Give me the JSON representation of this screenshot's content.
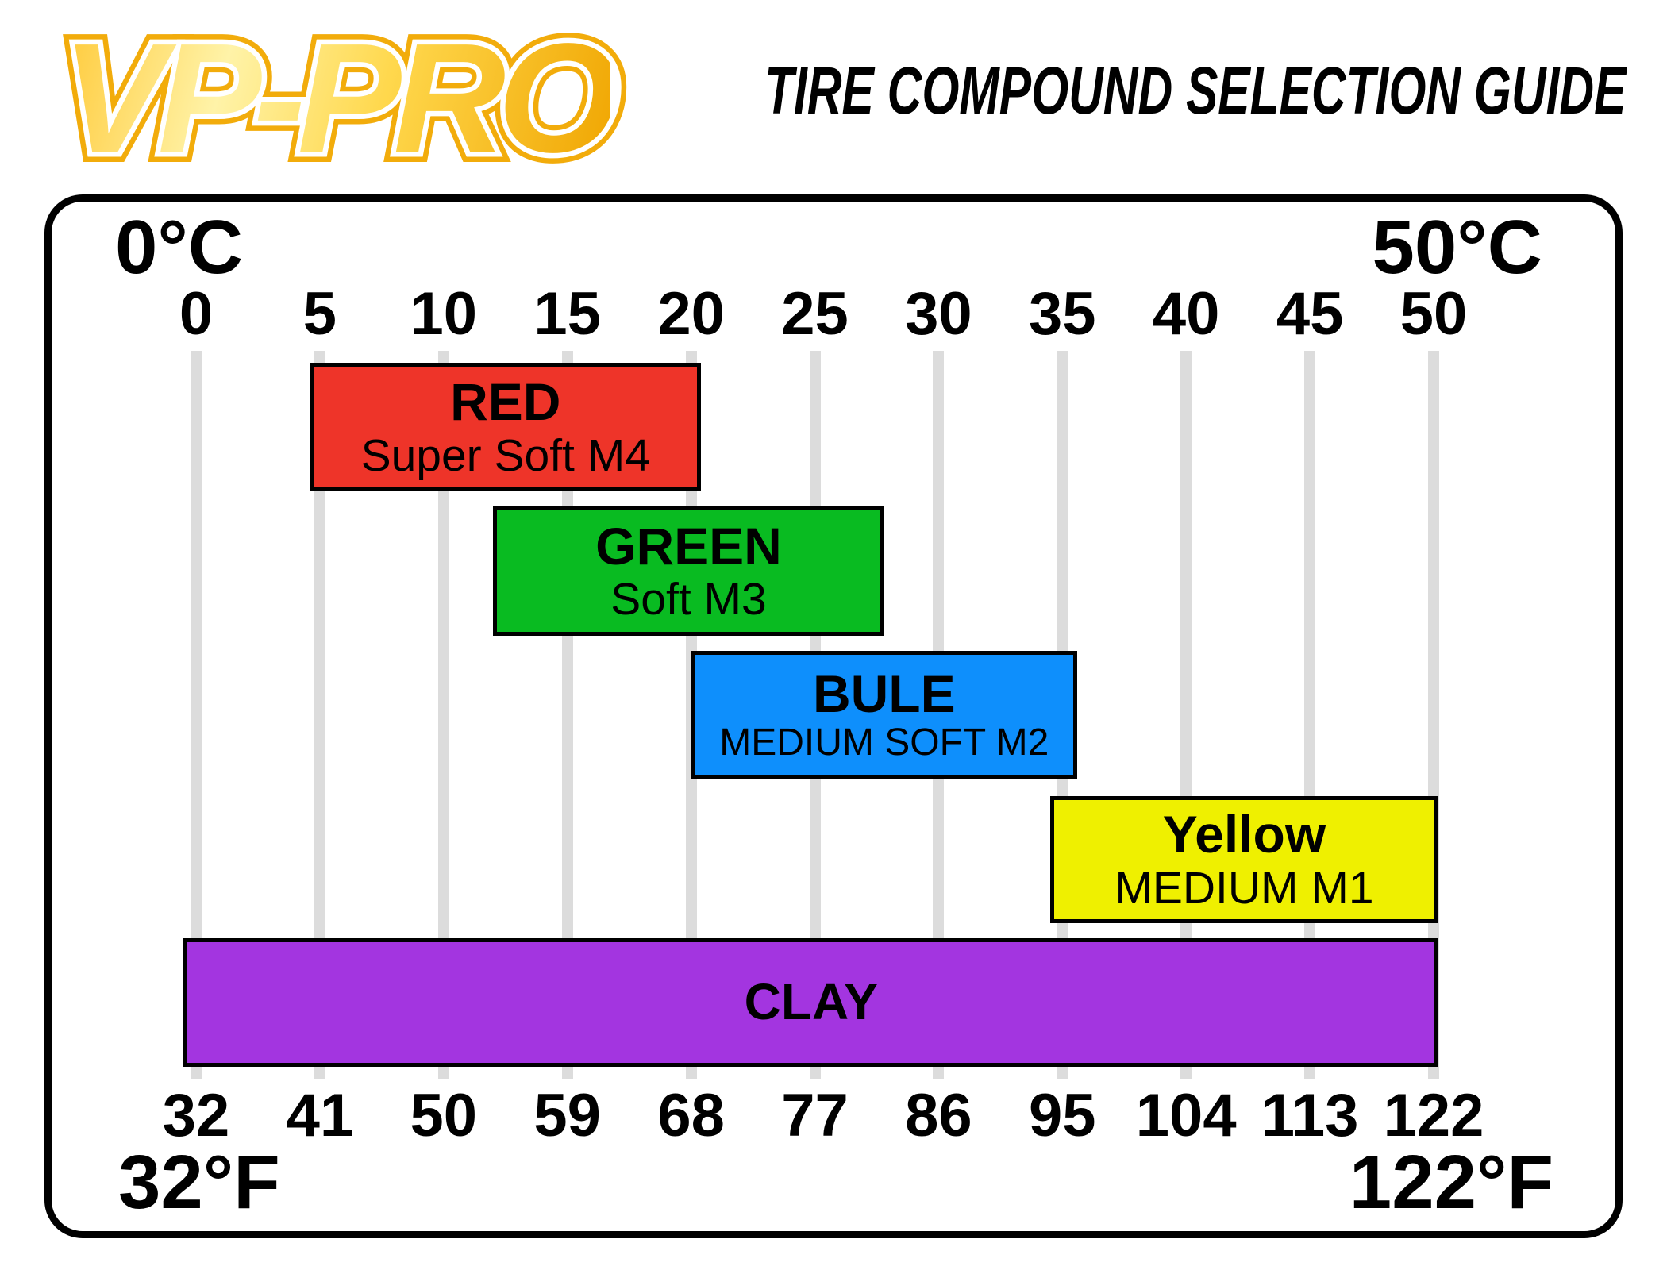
{
  "header": {
    "logo_text": "VP-PRO",
    "title": "TIRE COMPOUND SELECTION GUIDE"
  },
  "chart_data": {
    "type": "bar",
    "orientation": "horizontal-range",
    "title": "TIRE COMPOUND SELECTION GUIDE",
    "grid": true,
    "grid_color": "#DCDCDC",
    "celsius_axis": {
      "corner_left": "0°C",
      "corner_right": "50°C",
      "min": 0,
      "max": 50,
      "ticks": [
        0,
        5,
        10,
        15,
        20,
        25,
        30,
        35,
        40,
        45,
        50
      ]
    },
    "fahrenheit_axis": {
      "corner_left": "32°F",
      "corner_right": "122°F",
      "ticks": [
        32,
        41,
        50,
        59,
        68,
        77,
        86,
        95,
        104,
        113,
        122
      ]
    },
    "bars": [
      {
        "label": "RED",
        "compound": "Super Soft M4",
        "color": "#EE3429",
        "range_c": [
          4.6,
          20.4
        ]
      },
      {
        "label": "GREEN",
        "compound": "Soft M3",
        "color": "#09BB21",
        "range_c": [
          12.0,
          27.8
        ]
      },
      {
        "label": "BULE",
        "compound": "MEDIUM SOFT M2",
        "color": "#0E8FFC",
        "range_c": [
          20.0,
          35.6
        ]
      },
      {
        "label": "Yellow",
        "compound": "MEDIUM M1",
        "color": "#EFF000",
        "range_c": [
          34.5,
          50.2
        ]
      },
      {
        "label": "CLAY",
        "compound": "",
        "color": "#A335E0",
        "range_c": [
          -0.5,
          50.2
        ]
      }
    ]
  }
}
